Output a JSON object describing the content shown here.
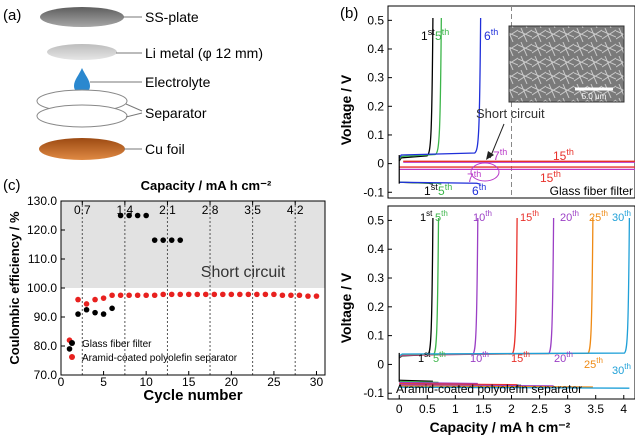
{
  "panel_a": {
    "label": "(a)",
    "parts": [
      {
        "label": "SS-plate"
      },
      {
        "label": "Li metal (φ 12 mm)"
      },
      {
        "label": "Electrolyte"
      },
      {
        "label": "Separator"
      },
      {
        "label": "Cu foil"
      }
    ],
    "colors": {
      "ss_plate": "#7d7d7d",
      "li": "#c8c8c8",
      "drop": "#2a88cf",
      "cu": "#c0631c"
    }
  },
  "panel_b_top": {
    "label": "(b)",
    "sem_scale": "5.0 μm",
    "annotation_short": "Short circuit",
    "filter_label": "Glass fiber filter",
    "cycle_labels": {
      "upper": [
        {
          "n": "1",
          "sup": "st",
          "color": "#000000"
        },
        {
          "n": "5",
          "sup": "th",
          "color": "#3cb54a"
        },
        {
          "n": "6",
          "sup": "th",
          "color": "#1f2fd9"
        },
        {
          "n": "7",
          "sup": "th",
          "color": "#b93ac9"
        },
        {
          "n": "15",
          "sup": "th",
          "color": "#e8312b"
        },
        {
          "n": "7",
          "sup": "th",
          "color": "#b93ac9"
        },
        {
          "n": "15",
          "sup": "th",
          "color": "#e8312b"
        }
      ],
      "lower": [
        {
          "n": "1",
          "sup": "st",
          "color": "#000000"
        },
        {
          "n": "5",
          "sup": "th",
          "color": "#3cb54a"
        },
        {
          "n": "6",
          "sup": "th",
          "color": "#1f2fd9"
        }
      ]
    }
  },
  "panel_b_bottom": {
    "label_text": "Aramid-coated polyolefin separator",
    "cycle_labels": [
      {
        "n": "1",
        "sup": "st",
        "color": "#000000"
      },
      {
        "n": "5",
        "sup": "th",
        "color": "#3cb54a"
      },
      {
        "n": "10",
        "sup": "th",
        "color": "#9b3fc5"
      },
      {
        "n": "15",
        "sup": "th",
        "color": "#e8312b"
      },
      {
        "n": "20",
        "sup": "th",
        "color": "#9b3fc5"
      },
      {
        "n": "25",
        "sup": "th",
        "color": "#ef8a14"
      },
      {
        "n": "30",
        "sup": "th",
        "color": "#1fa0d8"
      }
    ]
  },
  "panel_c": {
    "label": "(c)",
    "short_label": "Short circuit",
    "colors": {
      "glass": "#000000",
      "aramid": "#e8211f",
      "shade": "#e2e2e2"
    }
  },
  "chart_data": [
    {
      "type": "scatter",
      "panel": "c",
      "xlabel": "Cycle number",
      "ylabel": "Coulombic efficiency  /  %",
      "x2label": "Capacity / mA h cm⁻²",
      "xlim": [
        0,
        31
      ],
      "ylim": [
        70,
        130
      ],
      "xticks": [
        "0",
        "5",
        "10",
        "15",
        "20",
        "25",
        "30"
      ],
      "yticks": [
        "70.0",
        "80.0",
        "90.0",
        "100.0",
        "110.0",
        "120.0",
        "130.0"
      ],
      "x2ticks": [
        {
          "cycle": 2.5,
          "label": "0.7"
        },
        {
          "cycle": 7.5,
          "label": "1.4"
        },
        {
          "cycle": 12.5,
          "label": "2.1"
        },
        {
          "cycle": 17.5,
          "label": "2.8"
        },
        {
          "cycle": 22.5,
          "label": "3.5"
        },
        {
          "cycle": 27.5,
          "label": "4.2"
        }
      ],
      "grid": "vertical dotted",
      "legend": "bottom-left",
      "shaded_region": [
        100,
        130
      ],
      "series": [
        {
          "name": "Glass fiber filter",
          "x": [
            1,
            2,
            3,
            4,
            5,
            6,
            7,
            8,
            9,
            10,
            11,
            12,
            13,
            14
          ],
          "values": [
            79,
            91,
            92.5,
            91.5,
            91,
            93,
            125,
            125,
            125,
            125,
            116.5,
            116.5,
            116.5,
            116.5
          ]
        },
        {
          "name": "Aramid-coated polyolefin separator",
          "x": [
            1,
            2,
            3,
            4,
            5,
            6,
            7,
            8,
            9,
            10,
            11,
            12,
            13,
            14,
            15,
            16,
            17,
            18,
            19,
            20,
            21,
            22,
            23,
            24,
            25,
            26,
            27,
            28,
            29,
            30
          ],
          "values": [
            82,
            96,
            94.5,
            96,
            96.5,
            97.5,
            97.5,
            97.5,
            97.5,
            97.5,
            97.5,
            97.8,
            97.8,
            97.8,
            97.8,
            97.8,
            97.8,
            97.8,
            97.8,
            97.8,
            97.8,
            97.8,
            97.8,
            97.8,
            97.8,
            97.5,
            97.5,
            97.5,
            97.2,
            97.2
          ]
        }
      ]
    },
    {
      "type": "line",
      "panel": "b-top",
      "ylabel": "Voltage  /  V",
      "xlim": [
        -0.2,
        4.2
      ],
      "ylim": [
        -0.12,
        0.55
      ],
      "yticks": [
        "-0.1",
        "0",
        "0.1",
        "0.2",
        "0.3",
        "0.4",
        "0.5"
      ],
      "short_circuit_x": 2.0,
      "series": [
        {
          "name": "1st",
          "color": "#000000",
          "plating_v": -0.065,
          "stripping_v": 0.02,
          "capacity_end": 0.6
        },
        {
          "name": "5th",
          "color": "#3cb54a",
          "plating_v": -0.065,
          "stripping_v": 0.025,
          "capacity_end": 0.75
        },
        {
          "name": "6th",
          "color": "#1f2fd9",
          "plating_v": -0.065,
          "stripping_v": 0.03,
          "capacity_end": 1.45
        },
        {
          "name": "7th",
          "color": "#b93ac9",
          "plating_v": -0.02,
          "stripping_v": 0.005,
          "capacity_end": 4.2
        },
        {
          "name": "15th",
          "color": "#e8312b",
          "plating_v": -0.012,
          "stripping_v": 0.008,
          "capacity_end": 4.2
        }
      ]
    },
    {
      "type": "line",
      "panel": "b-bottom",
      "xlabel": "Capacity  /  mA h cm⁻²",
      "ylabel": "Voltage  /  V",
      "xlim": [
        -0.2,
        4.2
      ],
      "ylim": [
        -0.12,
        0.55
      ],
      "xticks": [
        "0",
        "0.5",
        "1",
        "1.5",
        "2",
        "2.5",
        "3",
        "3.5",
        "4"
      ],
      "yticks": [
        "-0.1",
        "0",
        "0.1",
        "0.2",
        "0.3",
        "0.4",
        "0.5"
      ],
      "series": [
        {
          "name": "1st",
          "color": "#000000",
          "capacity_end": 0.6
        },
        {
          "name": "5th",
          "color": "#3cb54a",
          "capacity_end": 0.7
        },
        {
          "name": "10th",
          "color": "#9b3fc5",
          "capacity_end": 1.4
        },
        {
          "name": "15th",
          "color": "#e8312b",
          "capacity_end": 2.1
        },
        {
          "name": "20th",
          "color": "#9b3fc5",
          "capacity_end": 2.75
        },
        {
          "name": "25th",
          "color": "#ef8a14",
          "capacity_end": 3.45
        },
        {
          "name": "30th",
          "color": "#1fa0d8",
          "capacity_end": 4.1
        }
      ]
    }
  ]
}
